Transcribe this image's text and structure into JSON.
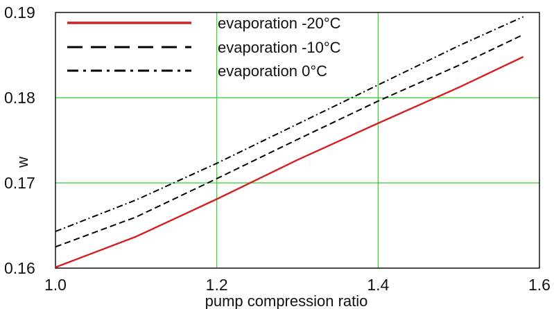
{
  "chart_data": {
    "type": "line",
    "title": "",
    "xlabel": "pump compression ratio",
    "ylabel": "w",
    "xlim": [
      1.0,
      1.6
    ],
    "ylim": [
      0.16,
      0.19
    ],
    "x_ticks": [
      1.0,
      1.2,
      1.4,
      1.6
    ],
    "x_tick_labels": [
      "1.0",
      "1.2",
      "1.4",
      "1.6"
    ],
    "y_ticks": [
      0.16,
      0.17,
      0.18,
      0.19
    ],
    "y_tick_labels": [
      "0.16",
      "0.17",
      "0.18",
      "0.19"
    ],
    "grid": true,
    "grid_color": "#33cc33",
    "legend_position": "top-left",
    "series": [
      {
        "name": "evaporation -20°C",
        "style": "solid",
        "color": "#d42020",
        "x": [
          1.0,
          1.1,
          1.2,
          1.3,
          1.4,
          1.5,
          1.58
        ],
        "y": [
          0.1601,
          0.1637,
          0.1681,
          0.1727,
          0.177,
          0.1812,
          0.1848
        ]
      },
      {
        "name": "evaporation -10°C",
        "style": "dashed",
        "color": "#000000",
        "x": [
          1.0,
          1.1,
          1.2,
          1.3,
          1.4,
          1.5,
          1.58
        ],
        "y": [
          0.1625,
          0.166,
          0.1705,
          0.1751,
          0.1796,
          0.1838,
          0.1874
        ]
      },
      {
        "name": "evaporation 0°C",
        "style": "dashdot",
        "color": "#000000",
        "x": [
          1.0,
          1.1,
          1.2,
          1.3,
          1.4,
          1.5,
          1.58
        ],
        "y": [
          0.1643,
          0.168,
          0.1723,
          0.1769,
          0.1815,
          0.1861,
          0.1895
        ]
      }
    ]
  }
}
